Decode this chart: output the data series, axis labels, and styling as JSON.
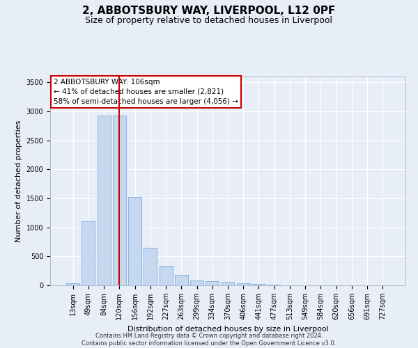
{
  "title1": "2, ABBOTSBURY WAY, LIVERPOOL, L12 0PF",
  "title2": "Size of property relative to detached houses in Liverpool",
  "xlabel": "Distribution of detached houses by size in Liverpool",
  "ylabel": "Number of detached properties",
  "footnote1": "Contains HM Land Registry data © Crown copyright and database right 2024.",
  "footnote2": "Contains public sector information licensed under the Open Government Licence v3.0.",
  "bar_labels": [
    "13sqm",
    "49sqm",
    "84sqm",
    "120sqm",
    "156sqm",
    "192sqm",
    "227sqm",
    "263sqm",
    "299sqm",
    "334sqm",
    "370sqm",
    "406sqm",
    "441sqm",
    "477sqm",
    "513sqm",
    "549sqm",
    "584sqm",
    "620sqm",
    "656sqm",
    "691sqm",
    "727sqm"
  ],
  "bar_values": [
    40,
    1100,
    2930,
    2930,
    1520,
    650,
    340,
    185,
    90,
    75,
    55,
    35,
    20,
    8,
    5,
    3,
    2,
    2,
    2,
    2,
    2
  ],
  "bar_color": "#c5d8f0",
  "bar_edge_color": "#7aadd4",
  "highlight_bar_index": 3,
  "highlight_color": "#cc0000",
  "ylim": [
    0,
    3600
  ],
  "yticks": [
    0,
    500,
    1000,
    1500,
    2000,
    2500,
    3000,
    3500
  ],
  "annotation_text": "2 ABBOTSBURY WAY: 106sqm\n← 41% of detached houses are smaller (2,821)\n58% of semi-detached houses are larger (4,056) →",
  "annotation_box_color": "#ffffff",
  "annotation_border_color": "#cc0000",
  "vline_x": 3,
  "bg_color": "#e8eef8",
  "grid_color": "#ffffff",
  "title1_fontsize": 11,
  "title2_fontsize": 9,
  "xlabel_fontsize": 8,
  "ylabel_fontsize": 8,
  "tick_fontsize": 7,
  "annot_fontsize": 7.5
}
